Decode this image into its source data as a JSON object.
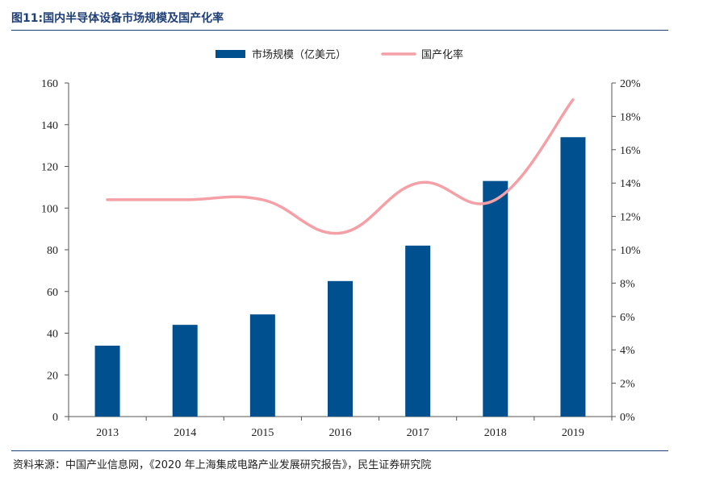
{
  "figure": {
    "title": "图11:国内半导体设备市场规模及国产化率",
    "source": "资料来源：中国产业信息网，《2020 年上海集成电路产业发展研究报告》，民生证券研究院"
  },
  "colors": {
    "bar": "#00508f",
    "line": "#f4a0a6",
    "title": "#1f3f77",
    "axis": "#555555"
  },
  "chart_data": {
    "type": "bar",
    "categories": [
      "2013",
      "2014",
      "2015",
      "2016",
      "2017",
      "2018",
      "2019"
    ],
    "series": [
      {
        "name": "市场规模（亿美元）",
        "type": "bar",
        "axis": "left",
        "values": [
          34,
          44,
          49,
          65,
          82,
          113,
          134
        ]
      },
      {
        "name": "国产化率",
        "type": "line",
        "axis": "right",
        "values": [
          0.13,
          0.13,
          0.13,
          0.11,
          0.14,
          0.13,
          0.19
        ]
      }
    ],
    "ylim": [
      0,
      160
    ],
    "y_ticks": [
      "0",
      "20",
      "40",
      "60",
      "80",
      "100",
      "120",
      "140",
      "160"
    ],
    "y2lim": [
      0,
      0.2
    ],
    "y2_ticks": [
      "0%",
      "2%",
      "4%",
      "6%",
      "8%",
      "10%",
      "12%",
      "14%",
      "16%",
      "18%",
      "20%"
    ],
    "legend_position": "top-center",
    "grid": false
  }
}
